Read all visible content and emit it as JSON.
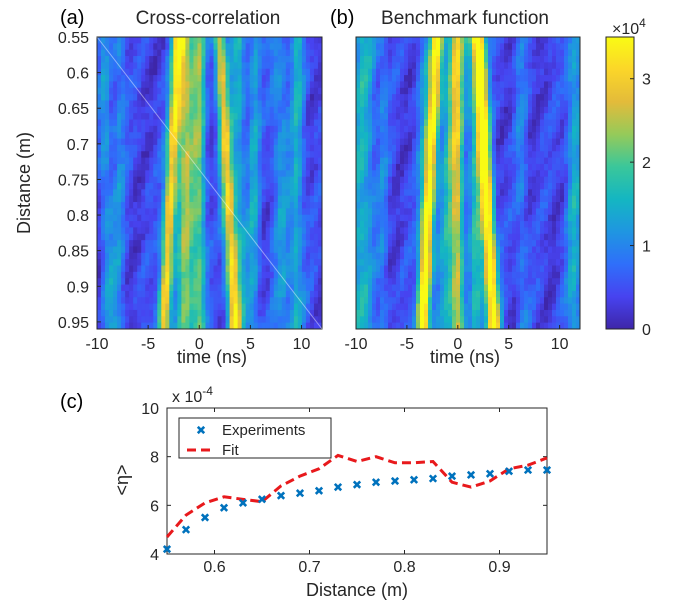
{
  "panels": {
    "a": {
      "label": "(a)",
      "title": "Cross-correlation"
    },
    "b": {
      "label": "(b)",
      "title": "Benchmark function"
    },
    "c": {
      "label": "(c)"
    }
  },
  "colors": {
    "experiments": "#0072BD",
    "fit": "#E8191C",
    "colormap": [
      "#3E26A8",
      "#4743F0",
      "#2F6FFA",
      "#1F96E1",
      "#14B6C2",
      "#3AC79A",
      "#95CA5A",
      "#E3BB3A",
      "#FBD629",
      "#F9FB14"
    ]
  },
  "chart_data": [
    {
      "type": "heatmap",
      "panel": "a",
      "title": "Cross-correlation",
      "xlabel": "time (ns)",
      "ylabel": "Distance (m)",
      "xlim": [
        -10,
        12
      ],
      "ylim": [
        0.55,
        0.96
      ],
      "y_reversed": true,
      "xticks": [
        "-10",
        "-5",
        "0",
        "5",
        "10"
      ],
      "yticks": [
        "0.55",
        "0.6",
        "0.65",
        "0.7",
        "0.75",
        "0.8",
        "0.85",
        "0.9",
        "0.95"
      ],
      "ridges": [
        {
          "x_top": -2.0,
          "x_bottom": -3.5,
          "peak": 34000
        },
        {
          "x_top": 2.0,
          "x_bottom": 3.5,
          "peak": 30000
        },
        {
          "x_top": 0.0,
          "x_bottom": 0.0,
          "peak": 22000
        }
      ]
    },
    {
      "type": "heatmap",
      "panel": "b",
      "title": "Benchmark function",
      "xlabel": "time (ns)",
      "xlim": [
        -10,
        12
      ],
      "ylim": [
        0.55,
        0.96
      ],
      "y_reversed": true,
      "xticks": [
        "-10",
        "-5",
        "0",
        "5",
        "10"
      ],
      "colorbar": {
        "min": 0,
        "max": 35000,
        "ticks": [
          "0",
          "1",
          "2",
          "3"
        ],
        "exponent_label": "×10",
        "exponent_power": "4"
      },
      "ridges": [
        {
          "x_top": -2.0,
          "x_bottom": -3.5,
          "peak": 35000
        },
        {
          "x_top": 2.0,
          "x_bottom": 3.6,
          "peak": 35000
        },
        {
          "x_top": 0.0,
          "x_bottom": 0.0,
          "peak": 24000
        }
      ]
    },
    {
      "type": "scatter",
      "panel": "c",
      "xlabel": "Distance (m)",
      "ylabel": "<η>",
      "multiplier_label": "x 10",
      "multiplier_power": "-4",
      "xlim": [
        0.55,
        0.95
      ],
      "ylim": [
        4,
        10
      ],
      "xticks": [
        "0.6",
        "0.7",
        "0.8",
        "0.9"
      ],
      "yticks": [
        "4",
        "6",
        "8",
        "10"
      ],
      "legend_position": "top-left",
      "series": [
        {
          "name": "Experiments",
          "marker": "x",
          "x": [
            0.55,
            0.57,
            0.59,
            0.61,
            0.63,
            0.65,
            0.67,
            0.69,
            0.71,
            0.73,
            0.75,
            0.77,
            0.79,
            0.81,
            0.83,
            0.85,
            0.87,
            0.89,
            0.91,
            0.93,
            0.95
          ],
          "y": [
            4.2,
            5.0,
            5.5,
            5.9,
            6.1,
            6.25,
            6.4,
            6.5,
            6.6,
            6.75,
            6.85,
            6.95,
            7.0,
            7.05,
            7.1,
            7.2,
            7.25,
            7.3,
            7.4,
            7.45,
            7.45
          ]
        },
        {
          "name": "Fit",
          "line": "dashed",
          "x": [
            0.55,
            0.57,
            0.59,
            0.61,
            0.63,
            0.65,
            0.67,
            0.69,
            0.71,
            0.73,
            0.75,
            0.77,
            0.79,
            0.81,
            0.83,
            0.85,
            0.87,
            0.89,
            0.91,
            0.93,
            0.95
          ],
          "y": [
            4.7,
            5.6,
            6.1,
            6.35,
            6.25,
            6.15,
            6.8,
            7.2,
            7.5,
            8.05,
            7.8,
            8.0,
            7.75,
            7.75,
            7.8,
            6.95,
            6.75,
            7.0,
            7.5,
            7.65,
            7.95
          ]
        }
      ]
    }
  ]
}
